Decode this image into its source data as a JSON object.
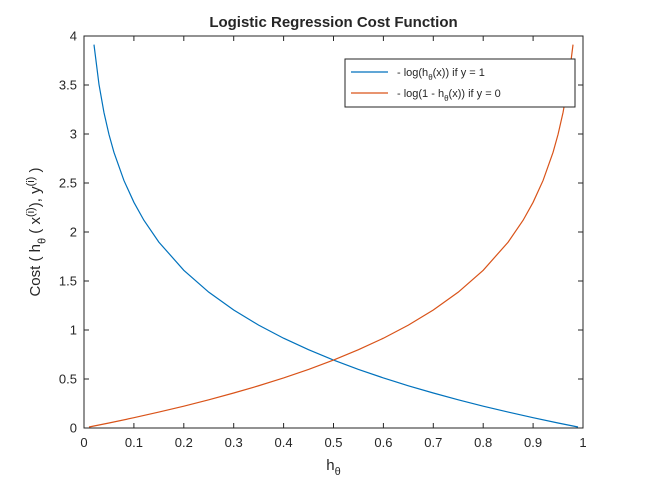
{
  "chart_data": {
    "type": "line",
    "title": "Logistic Regression Cost Function",
    "xlabel": {
      "main": "h",
      "sub": "θ"
    },
    "ylabel": {
      "parts": [
        {
          "text": "Cost ( h",
          "shift": "none"
        },
        {
          "text": "θ",
          "shift": "sub"
        },
        {
          "text": " ( x",
          "shift": "none"
        },
        {
          "text": "(i)",
          "shift": "super"
        },
        {
          "text": "), y",
          "shift": "none"
        },
        {
          "text": "(i)",
          "shift": "super"
        },
        {
          "text": " )",
          "shift": "none"
        }
      ]
    },
    "xlim": [
      0,
      1
    ],
    "ylim": [
      0,
      4
    ],
    "xticks": [
      0,
      0.1,
      0.2,
      0.3,
      0.4,
      0.5,
      0.6,
      0.7,
      0.8,
      0.9,
      1
    ],
    "xtick_labels": [
      "0",
      "0.1",
      "0.2",
      "0.3",
      "0.4",
      "0.5",
      "0.6",
      "0.7",
      "0.8",
      "0.9",
      "1"
    ],
    "yticks": [
      0,
      0.5,
      1,
      1.5,
      2,
      2.5,
      3,
      3.5,
      4
    ],
    "ytick_labels": [
      "0",
      "0.5",
      "1",
      "1.5",
      "2",
      "2.5",
      "3",
      "3.5",
      "4"
    ],
    "grid": false,
    "legend_position": "top-right",
    "series": [
      {
        "color": "#0072BD",
        "legend_parts": [
          {
            "text": "- log(h",
            "shift": "none"
          },
          {
            "text": "θ",
            "shift": "sub"
          },
          {
            "text": "(x))   if  y = 1",
            "shift": "none"
          }
        ],
        "x": [
          0.02,
          0.03,
          0.04,
          0.05,
          0.06,
          0.08,
          0.1,
          0.12,
          0.15,
          0.2,
          0.25,
          0.3,
          0.35,
          0.4,
          0.45,
          0.5,
          0.55,
          0.6,
          0.65,
          0.7,
          0.75,
          0.8,
          0.85,
          0.9,
          0.95,
          0.99
        ],
        "y": [
          3.912,
          3.507,
          3.219,
          2.996,
          2.813,
          2.526,
          2.303,
          2.12,
          1.897,
          1.609,
          1.386,
          1.204,
          1.05,
          0.916,
          0.799,
          0.693,
          0.598,
          0.511,
          0.431,
          0.357,
          0.288,
          0.223,
          0.163,
          0.105,
          0.051,
          0.01
        ]
      },
      {
        "color": "#D95319",
        "legend_parts": [
          {
            "text": "- log(1 - h",
            "shift": "none"
          },
          {
            "text": "θ",
            "shift": "sub"
          },
          {
            "text": "(x))   if  y = 0",
            "shift": "none"
          }
        ],
        "x": [
          0.01,
          0.05,
          0.1,
          0.15,
          0.2,
          0.25,
          0.3,
          0.35,
          0.4,
          0.45,
          0.5,
          0.55,
          0.6,
          0.65,
          0.7,
          0.75,
          0.8,
          0.85,
          0.88,
          0.9,
          0.92,
          0.94,
          0.95,
          0.96,
          0.97,
          0.98
        ],
        "y": [
          0.01,
          0.051,
          0.105,
          0.163,
          0.223,
          0.288,
          0.357,
          0.431,
          0.511,
          0.598,
          0.693,
          0.799,
          0.916,
          1.05,
          1.204,
          1.386,
          1.609,
          1.897,
          2.12,
          2.303,
          2.526,
          2.813,
          2.996,
          3.219,
          3.507,
          3.912
        ]
      }
    ]
  }
}
